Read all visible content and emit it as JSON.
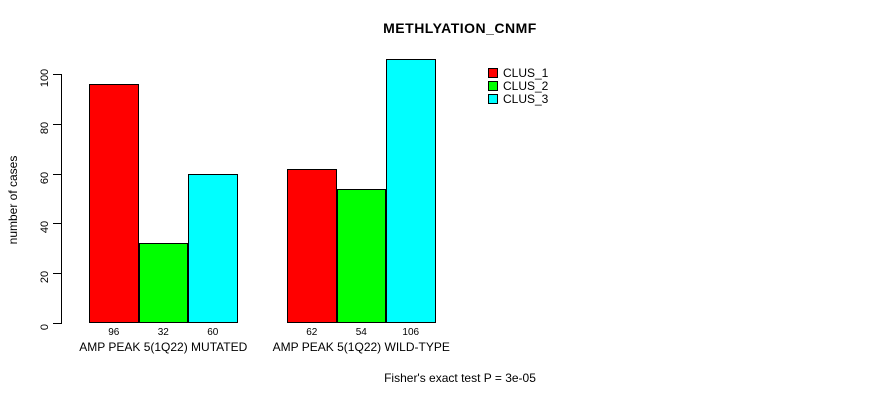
{
  "chart_data": {
    "type": "bar",
    "title": "METHLYATION_CNMF",
    "ylabel": "number of cases",
    "xlabel": "",
    "categories": [
      "AMP PEAK 5(1Q22) MUTATED",
      "AMP PEAK 5(1Q22) WILD-TYPE"
    ],
    "series": [
      {
        "name": "CLUS_1",
        "color": "#ff0000",
        "values": [
          96,
          62
        ]
      },
      {
        "name": "CLUS_2",
        "color": "#00ff00",
        "values": [
          32,
          54
        ]
      },
      {
        "name": "CLUS_3",
        "color": "#00ffff",
        "values": [
          60,
          106
        ]
      }
    ],
    "yticks": [
      0,
      20,
      40,
      60,
      80,
      100
    ],
    "ylim": [
      0,
      100
    ],
    "grid": false,
    "bar_borders": "#000000",
    "value_labels_shown": true,
    "legend_position": "top-right",
    "annotation": "Fisher's exact test P = 3e-05"
  }
}
